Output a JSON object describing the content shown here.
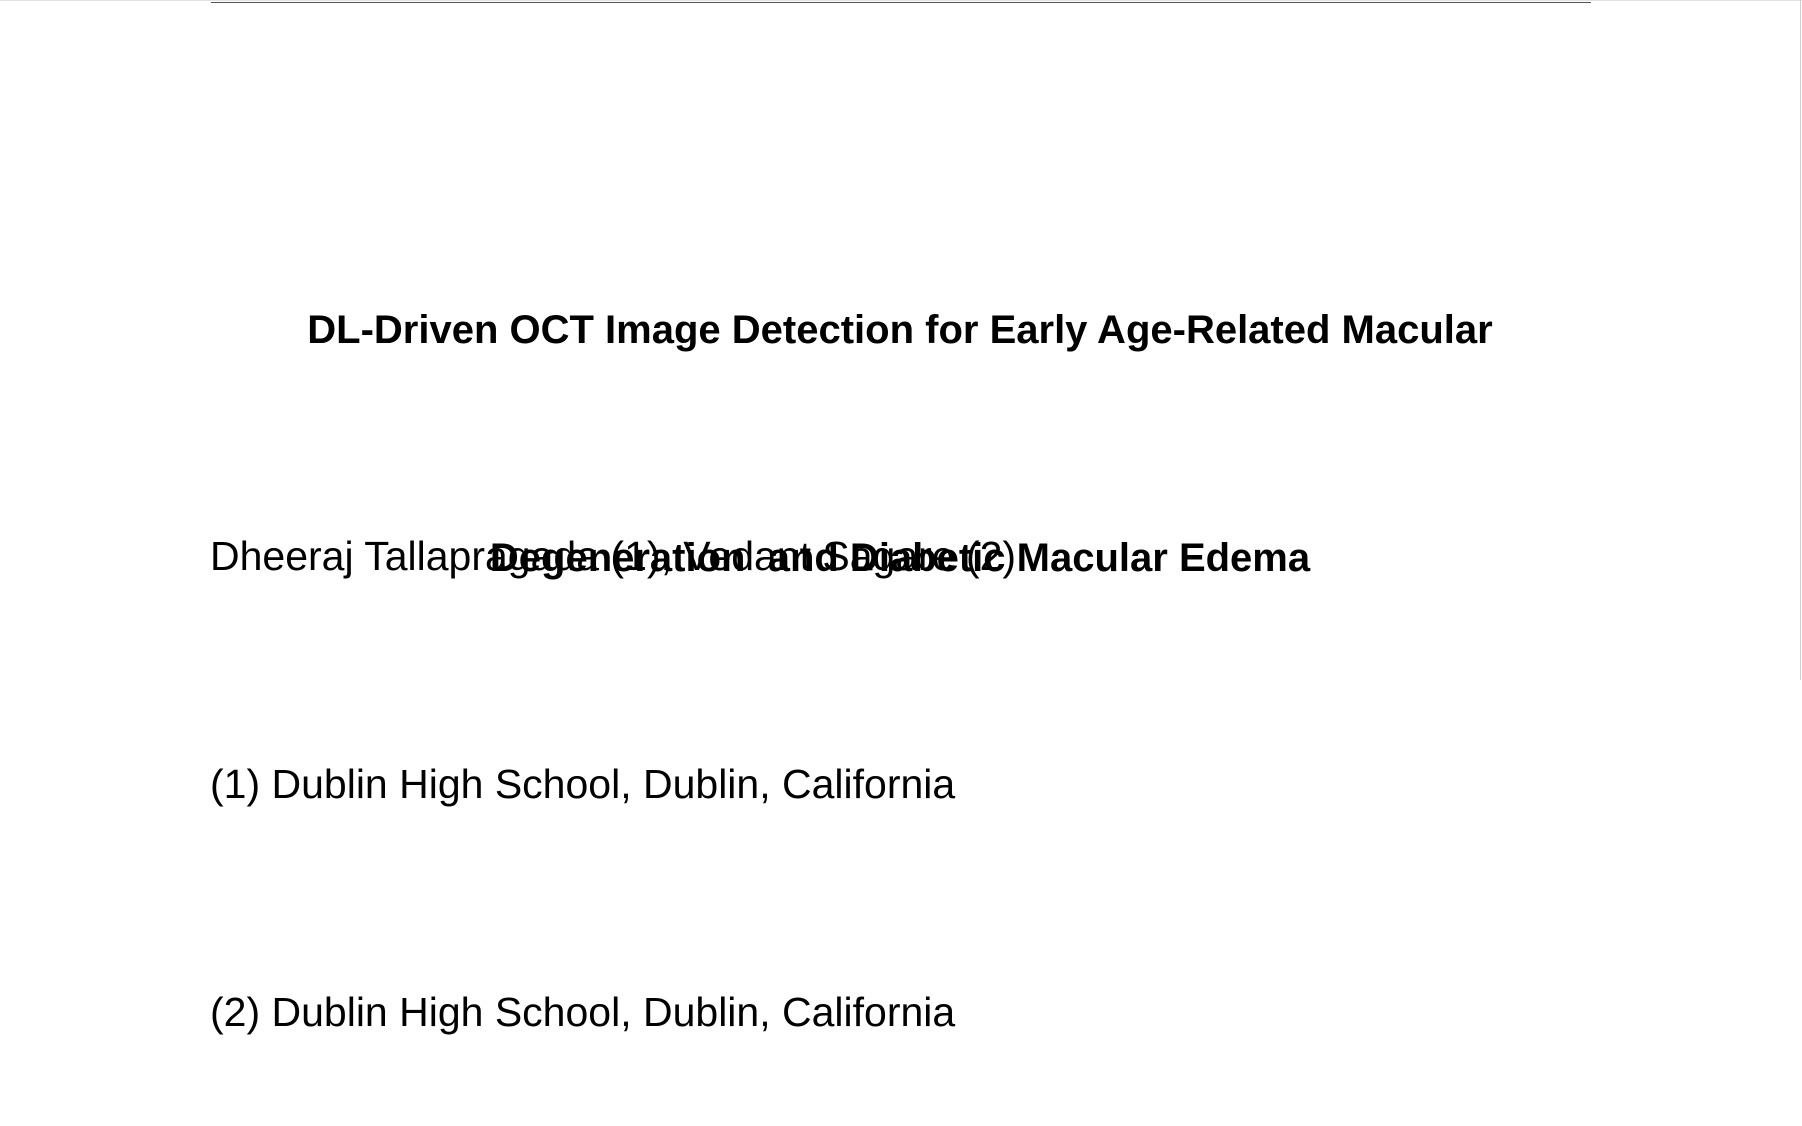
{
  "paper": {
    "title_lines": [
      "DL-Driven OCT Image Detection for Early Age-Related Macular",
      "Degeneration  and Diabetic Macular Edema"
    ],
    "authors": "Dheeraj Tallapragada (1), Vedant Sagare (2)",
    "affiliations": [
      "(1) Dublin High School, Dublin, California",
      "(2) Dublin High School, Dublin, California"
    ]
  }
}
